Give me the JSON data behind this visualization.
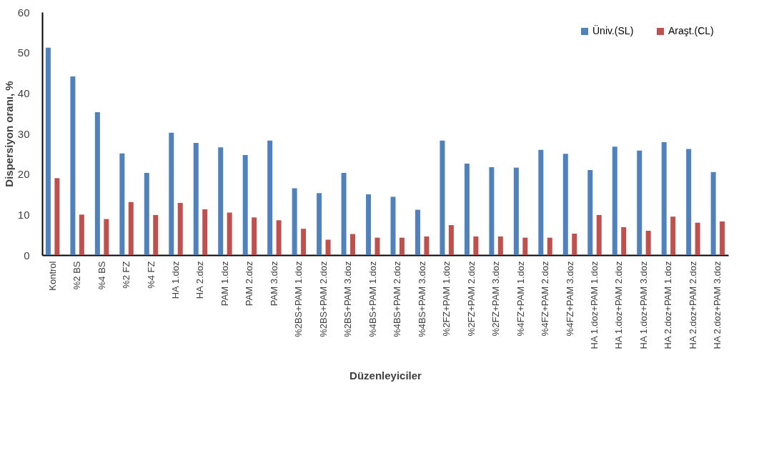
{
  "chart_data": {
    "type": "bar",
    "xlabel": "Düzenleyiciler",
    "ylabel": "Dispersiyon oranı, %",
    "categories": [
      "Kontrol",
      "%2 BS",
      "%4 BS",
      "%2 FZ",
      "%4 FZ",
      "HA 1.doz",
      "HA 2.doz",
      "PAM 1.doz",
      "PAM 2.doz",
      "PAM 3.doz",
      "%2BS+PAM 1.doz",
      "%2BS+PAM 2.doz",
      "%2BS+PAM 3.doz",
      "%4BS+PAM 1.doz",
      "%4BS+PAM 2.doz",
      "%4BS+PAM 3.doz",
      "%2FZ+PAM 1.doz",
      "%2FZ+PAM 2.doz",
      "%2FZ+PAM 3.doz",
      "%4FZ+PAM 1.doz",
      "%4FZ+PAM 2.doz",
      "%4FZ+PAM 3.doz",
      "HA 1.doz+PAM 1.doz",
      "HA 1.doz+PAM 2.doz",
      "HA 1.doz+PAM 3.doz",
      "HA 2.doz+PAM 1.doz",
      "HA 2.doz+PAM 2.doz",
      "HA 2.doz+PAM 3.doz"
    ],
    "series": [
      {
        "name": "Üniv.(SL)",
        "color": "#4f81bd",
        "values": [
          51.2,
          44.1,
          35.3,
          25.1,
          20.3,
          30.2,
          27.7,
          26.6,
          24.7,
          28.3,
          16.5,
          15.3,
          20.3,
          15.0,
          14.4,
          11.2,
          28.3,
          22.6,
          21.7,
          21.6,
          26.0,
          25.0,
          21.0,
          26.8,
          25.8,
          27.9,
          26.2,
          20.5
        ]
      },
      {
        "name": "Araşt.(CL)",
        "color": "#c0504d",
        "values": [
          19.0,
          10.0,
          8.9,
          13.1,
          9.9,
          12.9,
          11.3,
          10.5,
          9.3,
          8.6,
          6.5,
          3.8,
          5.2,
          4.3,
          4.3,
          4.6,
          7.4,
          4.6,
          4.6,
          4.3,
          4.3,
          5.3,
          9.9,
          6.9,
          6.0,
          9.5,
          8.0,
          8.3
        ]
      }
    ],
    "ylim": [
      0,
      60
    ],
    "yticks": [
      0,
      10,
      20,
      30,
      40,
      50,
      60
    ],
    "grid": false,
    "legend": "top right"
  }
}
